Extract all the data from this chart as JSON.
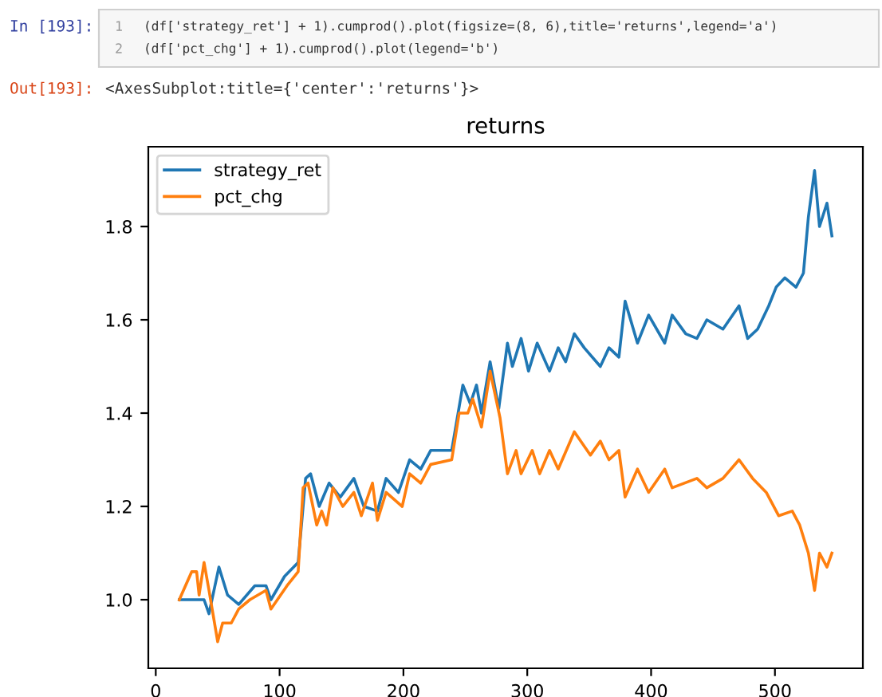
{
  "chart_data": {
    "type": "line",
    "title": "returns",
    "annotations": [
      "In [193]:",
      "1",
      "(df['strategy_ret'] + 1).cumprod().plot(figsize=(8, 6),title='returns',legend='a')",
      "2",
      "(df['pct_chg'] + 1).cumprod().plot(legend='b')",
      "Out[193]:",
      "<AxesSubplot:title={'center':'returns'}>"
    ],
    "xlim": [
      -6,
      571
    ],
    "ylim": [
      0.853,
      1.971
    ],
    "xticks": [
      0,
      100,
      200,
      300,
      400,
      500
    ],
    "yticks": [
      {
        "value": 1.0,
        "label": "1.0"
      },
      {
        "value": 1.2,
        "label": "1.2"
      },
      {
        "value": 1.4,
        "label": "1.4"
      },
      {
        "value": 1.6,
        "label": "1.6"
      },
      {
        "value": 1.8,
        "label": "1.8"
      }
    ],
    "grid": false,
    "legend": "top left",
    "marker": "none",
    "line_style": "solid",
    "series": [
      {
        "name": "strategy_ret",
        "color": "#1f77b4",
        "x": [
          19,
          39,
          43,
          51,
          58,
          67,
          80,
          89,
          93,
          104,
          115,
          121,
          125,
          132,
          140,
          149,
          160,
          168,
          179,
          186,
          196,
          205,
          214,
          222,
          239,
          248,
          254,
          259,
          263,
          270,
          277,
          284,
          288,
          295,
          301,
          308,
          318,
          325,
          331,
          338,
          346,
          359,
          366,
          374,
          379,
          389,
          398,
          411,
          417,
          428,
          437,
          445,
          458,
          471,
          478,
          486,
          495,
          501,
          508,
          517,
          523,
          527,
          532,
          536,
          542,
          546
        ],
        "values": [
          1.0,
          1.0,
          0.97,
          1.07,
          1.01,
          0.99,
          1.03,
          1.03,
          1.0,
          1.05,
          1.08,
          1.26,
          1.27,
          1.2,
          1.25,
          1.22,
          1.26,
          1.2,
          1.19,
          1.26,
          1.23,
          1.3,
          1.28,
          1.32,
          1.32,
          1.46,
          1.42,
          1.46,
          1.4,
          1.51,
          1.41,
          1.55,
          1.5,
          1.56,
          1.49,
          1.55,
          1.49,
          1.54,
          1.51,
          1.57,
          1.54,
          1.5,
          1.54,
          1.52,
          1.64,
          1.55,
          1.61,
          1.55,
          1.61,
          1.57,
          1.56,
          1.6,
          1.58,
          1.63,
          1.56,
          1.58,
          1.63,
          1.67,
          1.69,
          1.67,
          1.7,
          1.82,
          1.92,
          1.8,
          1.85,
          1.78
        ]
      },
      {
        "name": "pct_chg",
        "color": "#ff7f0e",
        "x": [
          19,
          29,
          33,
          35,
          39,
          43,
          50,
          54,
          61,
          67,
          76,
          89,
          93,
          106,
          115,
          119,
          123,
          130,
          134,
          138,
          143,
          151,
          160,
          166,
          175,
          179,
          186,
          199,
          205,
          214,
          222,
          239,
          245,
          252,
          256,
          263,
          270,
          278,
          284,
          291,
          295,
          304,
          310,
          318,
          325,
          338,
          351,
          359,
          366,
          374,
          379,
          389,
          398,
          411,
          417,
          437,
          445,
          458,
          471,
          482,
          493,
          503,
          514,
          520,
          527,
          532,
          536,
          542,
          546
        ],
        "values": [
          1.0,
          1.06,
          1.06,
          1.01,
          1.08,
          1.02,
          0.91,
          0.95,
          0.95,
          0.98,
          1.0,
          1.02,
          0.98,
          1.03,
          1.06,
          1.24,
          1.25,
          1.16,
          1.19,
          1.16,
          1.24,
          1.2,
          1.23,
          1.18,
          1.25,
          1.17,
          1.23,
          1.2,
          1.27,
          1.25,
          1.29,
          1.3,
          1.4,
          1.4,
          1.43,
          1.37,
          1.49,
          1.39,
          1.27,
          1.32,
          1.27,
          1.32,
          1.27,
          1.32,
          1.28,
          1.36,
          1.31,
          1.34,
          1.3,
          1.32,
          1.22,
          1.28,
          1.23,
          1.28,
          1.24,
          1.26,
          1.24,
          1.26,
          1.3,
          1.26,
          1.23,
          1.18,
          1.19,
          1.16,
          1.1,
          1.02,
          1.1,
          1.07,
          1.1
        ]
      }
    ]
  }
}
